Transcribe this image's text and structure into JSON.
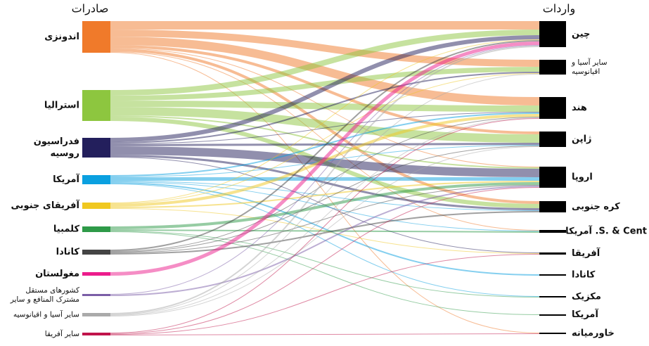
{
  "chart_data": {
    "type": "sankey",
    "source_title": "صادرات",
    "target_title": "واردات",
    "targets": [
      "چین",
      [
        "سایر آسیا و",
        "اقیانوسیه"
      ],
      "هند",
      "ژاپن",
      "اروپا",
      "کره جنوبی",
      "S. & Cent. آمریکا",
      "آفریقا",
      "کانادا",
      "مکزیک",
      "آمریکا",
      "خاورمیانه"
    ],
    "sources": [
      {
        "label": "اندونزی",
        "color": "#f07a2a",
        "values": [
          12,
          10,
          12,
          4,
          1,
          4,
          1,
          null,
          null,
          null,
          null,
          1
        ]
      },
      {
        "label": "استرالیا",
        "color": "#8dc63f",
        "values": [
          8,
          7,
          9,
          12,
          2,
          6,
          null,
          null,
          null,
          null,
          null,
          null
        ]
      },
      {
        "label": [
          "فدراسیون",
          "روسیه"
        ],
        "color": "#231f5c",
        "values": [
          6,
          2,
          1,
          3,
          12,
          3,
          null,
          1,
          null,
          null,
          null,
          null
        ]
      },
      {
        "label": "آمریکا",
        "color": "#0aa0e0",
        "values": [
          null,
          null,
          2,
          1,
          5,
          1,
          1,
          null,
          2,
          1,
          null,
          null
        ]
      },
      {
        "label": "آفریقای جنوبی",
        "color": "#f0c820",
        "values": [
          1,
          1,
          4,
          null,
          2,
          null,
          null,
          1,
          null,
          null,
          null,
          null
        ]
      },
      {
        "label": "کلمبیا",
        "color": "#2e9a48",
        "values": [
          null,
          null,
          null,
          null,
          4,
          null,
          2,
          null,
          null,
          1,
          1,
          null
        ]
      },
      {
        "label": "کانادا",
        "color": "#444444",
        "values": [
          2,
          null,
          1,
          1,
          1,
          2,
          null,
          null,
          null,
          null,
          null,
          null
        ]
      },
      {
        "label": "مغولستان",
        "color": "#ec1c8c",
        "values": [
          5,
          null,
          null,
          null,
          null,
          null,
          null,
          null,
          null,
          null,
          null,
          null
        ]
      },
      {
        "label": [
          "کشورهای مستقل",
          "مشترک المنافع و سایر"
        ],
        "color": "#7b5ea7",
        "values": [
          1,
          null,
          null,
          null,
          2,
          null,
          null,
          null,
          null,
          null,
          null,
          null
        ]
      },
      {
        "label": "سایر آسیا و اقیانوسیه",
        "color": "#aaaaaa",
        "values": [
          2,
          1,
          1,
          1,
          null,
          null,
          null,
          null,
          null,
          null,
          null,
          null
        ]
      },
      {
        "label": "سایر آفریقا",
        "color": "#c0134a",
        "values": [
          null,
          null,
          1,
          null,
          1,
          null,
          null,
          1,
          null,
          null,
          null,
          1
        ]
      }
    ]
  }
}
